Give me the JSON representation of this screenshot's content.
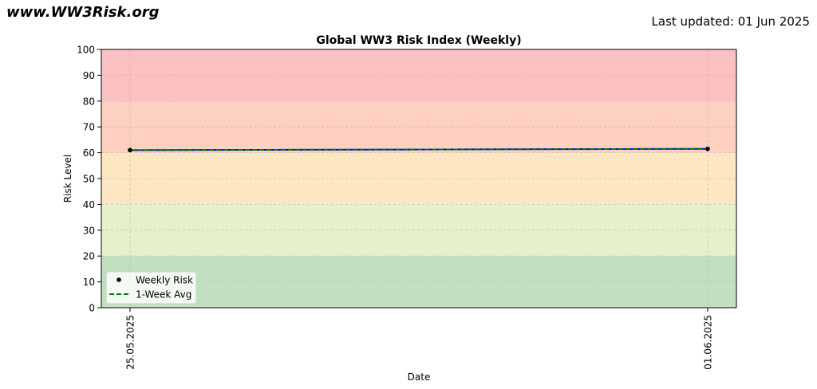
{
  "header": {
    "site_name": "www.WW3Risk.org",
    "last_updated": "Last updated: 01 Jun 2025"
  },
  "chart_data": {
    "type": "line",
    "title": "Global WW3 Risk Index (Weekly)",
    "xlabel": "Date",
    "ylabel": "Risk Level",
    "x": [
      "25.05.2025",
      "01.06.2025"
    ],
    "ylim": [
      0,
      100
    ],
    "yticks": [
      0,
      10,
      20,
      30,
      40,
      50,
      60,
      70,
      80,
      90,
      100
    ],
    "grid": true,
    "legend_position": "lower-left",
    "bands": [
      {
        "from": 0,
        "to": 20,
        "color": "#c2dfc0"
      },
      {
        "from": 20,
        "to": 40,
        "color": "#e6f1cc"
      },
      {
        "from": 40,
        "to": 60,
        "color": "#fde6c2"
      },
      {
        "from": 60,
        "to": 80,
        "color": "#fdd0c0"
      },
      {
        "from": 80,
        "to": 100,
        "color": "#fdc0c0"
      }
    ],
    "series": [
      {
        "name": "Weekly Risk",
        "style": "markers",
        "color": "#000000",
        "values": [
          61,
          61.5
        ]
      },
      {
        "name": "1-Week Avg",
        "style": "dashed",
        "color": "#008000",
        "values": [
          61,
          61.5
        ]
      }
    ],
    "connector_color": "#0000ff"
  }
}
